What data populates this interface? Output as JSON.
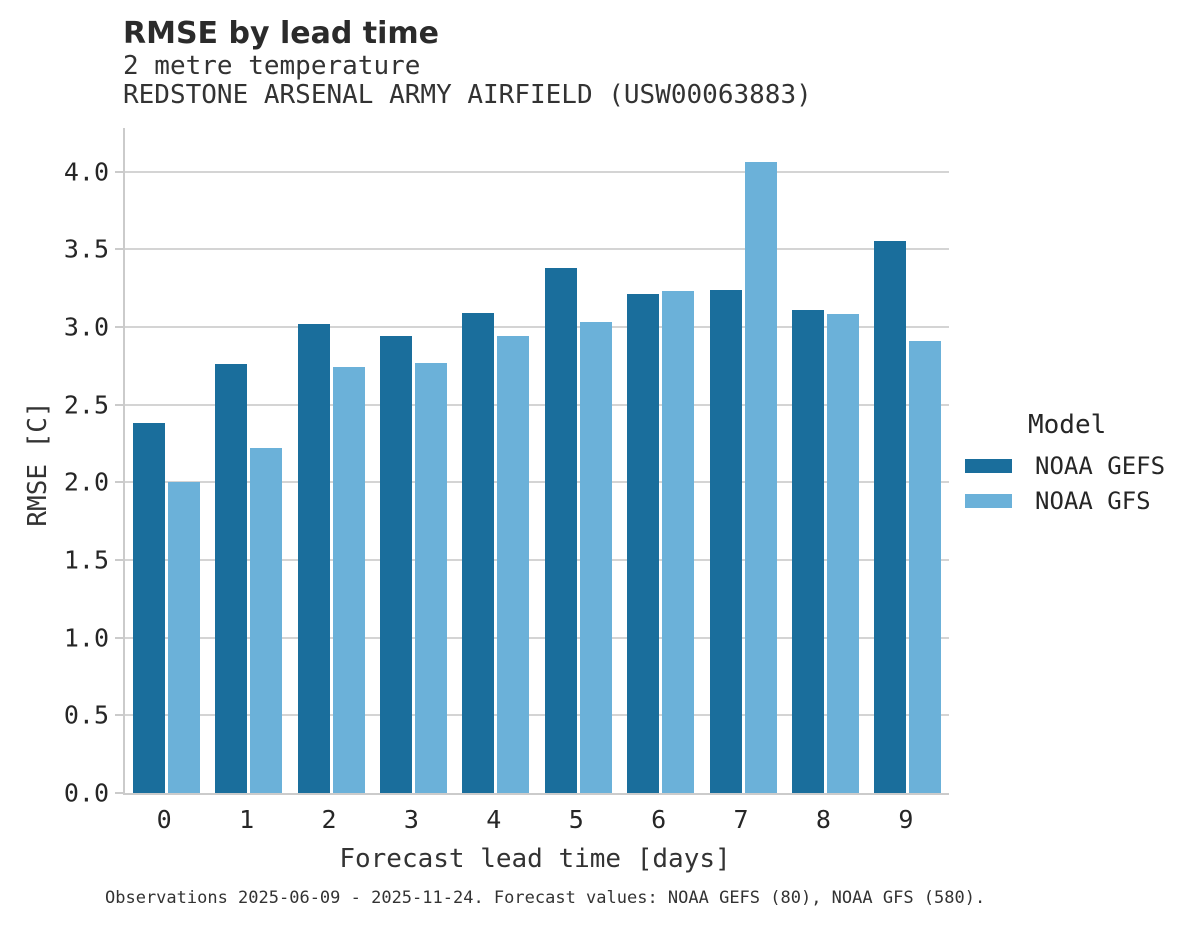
{
  "header": {
    "title": "RMSE by lead time"
  },
  "chart_data": {
    "type": "bar",
    "title": "RMSE by lead time",
    "subtitle": [
      "2 metre temperature",
      "REDSTONE ARSENAL ARMY AIRFIELD (USW00063883)"
    ],
    "categories": [
      "0",
      "1",
      "2",
      "3",
      "4",
      "5",
      "6",
      "7",
      "8",
      "9"
    ],
    "series": [
      {
        "name": "NOAA GEFS",
        "color": "#1a6e9c",
        "values": [
          2.38,
          2.76,
          3.02,
          2.94,
          3.09,
          3.38,
          3.21,
          3.24,
          3.11,
          3.55
        ]
      },
      {
        "name": "NOAA GFS",
        "color": "#6bb1d9",
        "values": [
          2.0,
          2.22,
          2.74,
          2.77,
          2.94,
          3.03,
          3.23,
          4.06,
          3.08,
          2.91
        ]
      }
    ],
    "xlabel": "Forecast lead time [days]",
    "ylabel": "RMSE [C]",
    "ylim": [
      0,
      4.28
    ],
    "ytick_labels": [
      "0.0",
      "0.5",
      "1.0",
      "1.5",
      "2.0",
      "2.5",
      "3.0",
      "3.5",
      "4.0"
    ],
    "grid": true,
    "legend_title": "Model",
    "legend_position": "right"
  },
  "footer": {
    "note": "Observations 2025-06-09 - 2025-11-24. Forecast values: NOAA GEFS (80), NOAA GFS (580)."
  },
  "colors": {
    "grid": "#d4d4d4",
    "spine": "#cbcbcb",
    "title_text": "#2b2b2b",
    "body_text": "#333333"
  }
}
